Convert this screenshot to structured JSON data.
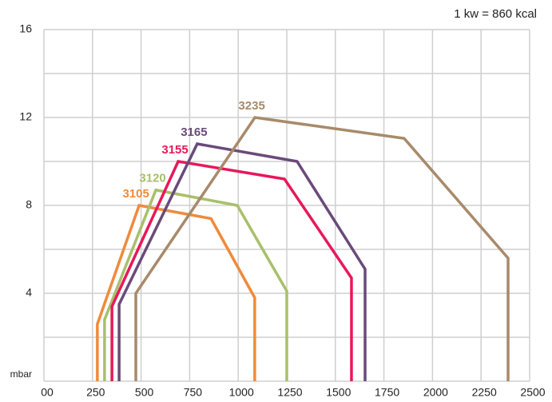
{
  "chart_data": {
    "type": "line",
    "annotation": "1 kw = 860 kcal",
    "xlim": [
      0,
      2500
    ],
    "xticks": [
      {
        "value": 0,
        "label": "00"
      },
      250,
      500,
      750,
      1000,
      1250,
      1500,
      1750,
      2000,
      2250,
      2500
    ],
    "ylim": [
      0,
      16
    ],
    "yticks": [
      {
        "value": 0,
        "label": "mbar"
      },
      4,
      8,
      12,
      16
    ],
    "y_minor_grid": [
      2,
      6,
      10,
      14
    ],
    "grid": true,
    "series": [
      {
        "name": "3105",
        "color": "#f08a3c",
        "x": [
          275,
          275,
          490,
          860,
          1085,
          1085
        ],
        "values": [
          0,
          2.6,
          8,
          7.4,
          3.8,
          0
        ]
      },
      {
        "name": "3120",
        "color": "#a8c06a",
        "x": [
          312,
          312,
          576,
          995,
          1250,
          1250
        ],
        "values": [
          0,
          2.8,
          8.7,
          8.0,
          4.1,
          0
        ]
      },
      {
        "name": "3155",
        "color": "#e8185a",
        "x": [
          350,
          350,
          691,
          1238,
          1583,
          1583
        ],
        "values": [
          0,
          3.4,
          10.0,
          9.2,
          4.7,
          0
        ]
      },
      {
        "name": "3165",
        "color": "#6a4a7a",
        "x": [
          387,
          387,
          789,
          1303,
          1653,
          1653
        ],
        "values": [
          0,
          3.5,
          10.8,
          10.0,
          5.1,
          0
        ]
      },
      {
        "name": "3235",
        "color": "#a88a6a",
        "x": [
          473,
          473,
          1086,
          1854,
          2389,
          2389
        ],
        "values": [
          0,
          4.0,
          12.0,
          11.05,
          5.6,
          0
        ]
      }
    ]
  }
}
